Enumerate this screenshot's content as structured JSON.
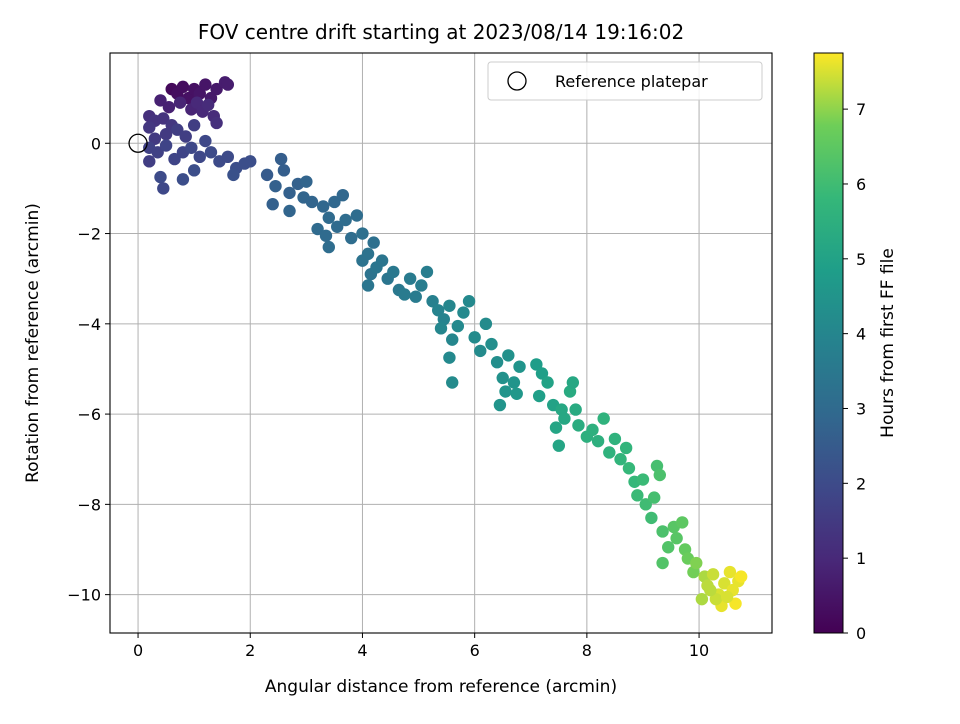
{
  "chart_data": {
    "type": "scatter",
    "title": "FOV centre drift starting at 2023/08/14 19:16:02",
    "xlabel": "Angular distance from reference (arcmin)",
    "ylabel": "Rotation from reference (arcmin)",
    "colorbar_label": "Hours from first FF file",
    "colormap": "viridis",
    "xlim": [
      -0.5,
      11.3
    ],
    "ylim": [
      -10.85,
      2.0
    ],
    "clim": [
      0,
      7.75
    ],
    "xticks": [
      0,
      2,
      4,
      6,
      8,
      10
    ],
    "yticks": [
      -10,
      -8,
      -6,
      -4,
      -2,
      0
    ],
    "cticks": [
      0,
      1,
      2,
      3,
      4,
      5,
      6,
      7
    ],
    "grid": true,
    "legend": {
      "position": "top-right",
      "entries": [
        "Reference platepar"
      ]
    },
    "reference_point": {
      "x": 0,
      "y": 0
    },
    "series": [
      {
        "name": "",
        "comment": "x, y in arcmin; c in hours from first FF file",
        "points": [
          {
            "x": 0.6,
            "y": 1.2,
            "c": 0.2
          },
          {
            "x": 0.7,
            "y": 1.1,
            "c": 0.3
          },
          {
            "x": 0.8,
            "y": 1.25,
            "c": 0.3
          },
          {
            "x": 0.9,
            "y": 1.0,
            "c": 0.4
          },
          {
            "x": 1.0,
            "y": 1.2,
            "c": 0.4
          },
          {
            "x": 1.1,
            "y": 1.1,
            "c": 0.5
          },
          {
            "x": 1.2,
            "y": 1.3,
            "c": 0.5
          },
          {
            "x": 1.3,
            "y": 1.0,
            "c": 0.6
          },
          {
            "x": 1.4,
            "y": 1.2,
            "c": 0.6
          },
          {
            "x": 1.55,
            "y": 1.35,
            "c": 0.7
          },
          {
            "x": 1.6,
            "y": 1.3,
            "c": 0.7
          },
          {
            "x": 0.4,
            "y": 0.95,
            "c": 0.8
          },
          {
            "x": 0.55,
            "y": 0.8,
            "c": 0.8
          },
          {
            "x": 0.75,
            "y": 0.9,
            "c": 0.9
          },
          {
            "x": 0.95,
            "y": 0.75,
            "c": 0.9
          },
          {
            "x": 1.05,
            "y": 0.9,
            "c": 1.0
          },
          {
            "x": 1.15,
            "y": 0.7,
            "c": 1.0
          },
          {
            "x": 1.25,
            "y": 0.85,
            "c": 1.1
          },
          {
            "x": 1.35,
            "y": 0.6,
            "c": 1.1
          },
          {
            "x": 1.4,
            "y": 0.45,
            "c": 1.2
          },
          {
            "x": 0.2,
            "y": 0.6,
            "c": 1.2
          },
          {
            "x": 0.3,
            "y": 0.5,
            "c": 1.3
          },
          {
            "x": 0.45,
            "y": 0.55,
            "c": 1.3
          },
          {
            "x": 0.6,
            "y": 0.4,
            "c": 1.4
          },
          {
            "x": 0.2,
            "y": 0.35,
            "c": 1.4
          },
          {
            "x": 0.3,
            "y": 0.1,
            "c": 1.5
          },
          {
            "x": 0.5,
            "y": 0.2,
            "c": 1.5
          },
          {
            "x": 0.7,
            "y": 0.3,
            "c": 1.6
          },
          {
            "x": 0.85,
            "y": 0.15,
            "c": 1.6
          },
          {
            "x": 1.0,
            "y": 0.4,
            "c": 1.6
          },
          {
            "x": 0.2,
            "y": -0.1,
            "c": 1.7
          },
          {
            "x": 0.35,
            "y": -0.2,
            "c": 1.7
          },
          {
            "x": 0.5,
            "y": -0.05,
            "c": 1.8
          },
          {
            "x": 0.65,
            "y": -0.35,
            "c": 1.8
          },
          {
            "x": 0.8,
            "y": -0.2,
            "c": 1.8
          },
          {
            "x": 0.95,
            "y": -0.1,
            "c": 1.9
          },
          {
            "x": 1.1,
            "y": -0.3,
            "c": 1.9
          },
          {
            "x": 1.2,
            "y": 0.05,
            "c": 1.9
          },
          {
            "x": 1.3,
            "y": -0.2,
            "c": 2.0
          },
          {
            "x": 1.45,
            "y": -0.4,
            "c": 2.0
          },
          {
            "x": 1.6,
            "y": -0.3,
            "c": 2.0
          },
          {
            "x": 1.75,
            "y": -0.55,
            "c": 2.1
          },
          {
            "x": 1.9,
            "y": -0.45,
            "c": 2.1
          },
          {
            "x": 2.0,
            "y": -0.4,
            "c": 2.1
          },
          {
            "x": 0.4,
            "y": -0.75,
            "c": 2.0
          },
          {
            "x": 0.45,
            "y": -1.0,
            "c": 1.9
          },
          {
            "x": 0.8,
            "y": -0.8,
            "c": 2.1
          },
          {
            "x": 1.0,
            "y": -0.6,
            "c": 2.1
          },
          {
            "x": 0.2,
            "y": -0.4,
            "c": 1.6
          },
          {
            "x": 1.7,
            "y": -0.7,
            "c": 2.2
          },
          {
            "x": 2.3,
            "y": -0.7,
            "c": 2.5
          },
          {
            "x": 2.55,
            "y": -0.35,
            "c": 2.6
          },
          {
            "x": 2.6,
            "y": -0.6,
            "c": 2.6
          },
          {
            "x": 2.45,
            "y": -0.95,
            "c": 2.7
          },
          {
            "x": 2.7,
            "y": -1.1,
            "c": 2.7
          },
          {
            "x": 2.85,
            "y": -0.9,
            "c": 2.7
          },
          {
            "x": 2.95,
            "y": -1.2,
            "c": 2.8
          },
          {
            "x": 3.0,
            "y": -0.85,
            "c": 2.8
          },
          {
            "x": 3.1,
            "y": -1.3,
            "c": 2.8
          },
          {
            "x": 2.4,
            "y": -1.35,
            "c": 2.7
          },
          {
            "x": 2.7,
            "y": -1.5,
            "c": 2.8
          },
          {
            "x": 3.3,
            "y": -1.4,
            "c": 2.9
          },
          {
            "x": 3.5,
            "y": -1.3,
            "c": 2.9
          },
          {
            "x": 3.65,
            "y": -1.15,
            "c": 2.9
          },
          {
            "x": 3.2,
            "y": -1.9,
            "c": 3.0
          },
          {
            "x": 3.35,
            "y": -2.05,
            "c": 3.0
          },
          {
            "x": 3.4,
            "y": -1.65,
            "c": 3.0
          },
          {
            "x": 3.55,
            "y": -1.85,
            "c": 3.0
          },
          {
            "x": 3.7,
            "y": -1.7,
            "c": 3.1
          },
          {
            "x": 3.8,
            "y": -2.1,
            "c": 3.1
          },
          {
            "x": 3.9,
            "y": -1.6,
            "c": 3.1
          },
          {
            "x": 4.0,
            "y": -2.0,
            "c": 3.2
          },
          {
            "x": 4.2,
            "y": -2.2,
            "c": 3.2
          },
          {
            "x": 3.4,
            "y": -2.3,
            "c": 3.1
          },
          {
            "x": 4.0,
            "y": -2.6,
            "c": 3.3
          },
          {
            "x": 4.1,
            "y": -2.45,
            "c": 3.3
          },
          {
            "x": 4.15,
            "y": -2.9,
            "c": 3.3
          },
          {
            "x": 4.25,
            "y": -2.75,
            "c": 3.4
          },
          {
            "x": 4.35,
            "y": -2.6,
            "c": 3.4
          },
          {
            "x": 4.45,
            "y": -3.0,
            "c": 3.4
          },
          {
            "x": 4.1,
            "y": -3.15,
            "c": 3.4
          },
          {
            "x": 4.55,
            "y": -2.85,
            "c": 3.5
          },
          {
            "x": 4.65,
            "y": -3.25,
            "c": 3.5
          },
          {
            "x": 4.75,
            "y": -3.35,
            "c": 3.6
          },
          {
            "x": 4.85,
            "y": -3.0,
            "c": 3.6
          },
          {
            "x": 4.95,
            "y": -3.4,
            "c": 3.6
          },
          {
            "x": 5.05,
            "y": -3.15,
            "c": 3.7
          },
          {
            "x": 5.15,
            "y": -2.85,
            "c": 3.7
          },
          {
            "x": 5.25,
            "y": -3.5,
            "c": 3.8
          },
          {
            "x": 5.35,
            "y": -3.7,
            "c": 3.9
          },
          {
            "x": 5.45,
            "y": -3.9,
            "c": 3.9
          },
          {
            "x": 5.55,
            "y": -3.6,
            "c": 4.0
          },
          {
            "x": 5.4,
            "y": -4.1,
            "c": 4.0
          },
          {
            "x": 5.6,
            "y": -4.35,
            "c": 4.0
          },
          {
            "x": 5.7,
            "y": -4.05,
            "c": 4.1
          },
          {
            "x": 5.8,
            "y": -3.75,
            "c": 4.1
          },
          {
            "x": 5.9,
            "y": -3.5,
            "c": 4.1
          },
          {
            "x": 6.0,
            "y": -4.3,
            "c": 4.2
          },
          {
            "x": 6.1,
            "y": -4.6,
            "c": 4.2
          },
          {
            "x": 6.2,
            "y": -4.0,
            "c": 4.2
          },
          {
            "x": 5.55,
            "y": -4.75,
            "c": 4.1
          },
          {
            "x": 5.6,
            "y": -5.3,
            "c": 4.2
          },
          {
            "x": 6.3,
            "y": -4.45,
            "c": 4.3
          },
          {
            "x": 6.4,
            "y": -4.85,
            "c": 4.3
          },
          {
            "x": 6.5,
            "y": -5.2,
            "c": 4.4
          },
          {
            "x": 6.6,
            "y": -4.7,
            "c": 4.4
          },
          {
            "x": 6.7,
            "y": -5.3,
            "c": 4.5
          },
          {
            "x": 6.8,
            "y": -4.95,
            "c": 4.5
          },
          {
            "x": 6.45,
            "y": -5.8,
            "c": 4.5
          },
          {
            "x": 6.55,
            "y": -5.5,
            "c": 4.5
          },
          {
            "x": 6.75,
            "y": -5.55,
            "c": 4.6
          },
          {
            "x": 7.1,
            "y": -4.9,
            "c": 4.8
          },
          {
            "x": 7.2,
            "y": -5.1,
            "c": 4.9
          },
          {
            "x": 7.15,
            "y": -5.6,
            "c": 4.9
          },
          {
            "x": 7.3,
            "y": -5.3,
            "c": 5.0
          },
          {
            "x": 7.4,
            "y": -5.8,
            "c": 5.0
          },
          {
            "x": 7.45,
            "y": -6.3,
            "c": 5.1
          },
          {
            "x": 7.5,
            "y": -6.7,
            "c": 5.1
          },
          {
            "x": 7.55,
            "y": -5.9,
            "c": 5.2
          },
          {
            "x": 7.6,
            "y": -6.1,
            "c": 5.2
          },
          {
            "x": 7.7,
            "y": -5.5,
            "c": 5.3
          },
          {
            "x": 7.8,
            "y": -5.9,
            "c": 5.3
          },
          {
            "x": 7.85,
            "y": -6.25,
            "c": 5.4
          },
          {
            "x": 7.75,
            "y": -5.3,
            "c": 5.2
          },
          {
            "x": 8.0,
            "y": -6.5,
            "c": 5.5
          },
          {
            "x": 8.1,
            "y": -6.35,
            "c": 5.5
          },
          {
            "x": 8.2,
            "y": -6.6,
            "c": 5.5
          },
          {
            "x": 8.3,
            "y": -6.1,
            "c": 5.6
          },
          {
            "x": 8.4,
            "y": -6.85,
            "c": 5.6
          },
          {
            "x": 8.5,
            "y": -6.55,
            "c": 5.6
          },
          {
            "x": 8.6,
            "y": -7.0,
            "c": 5.7
          },
          {
            "x": 8.7,
            "y": -6.75,
            "c": 5.7
          },
          {
            "x": 8.75,
            "y": -7.2,
            "c": 5.8
          },
          {
            "x": 8.85,
            "y": -7.5,
            "c": 5.8
          },
          {
            "x": 8.9,
            "y": -7.8,
            "c": 5.9
          },
          {
            "x": 9.0,
            "y": -7.45,
            "c": 5.9
          },
          {
            "x": 9.05,
            "y": -8.0,
            "c": 6.0
          },
          {
            "x": 9.15,
            "y": -8.3,
            "c": 6.0
          },
          {
            "x": 9.2,
            "y": -7.85,
            "c": 6.1
          },
          {
            "x": 9.25,
            "y": -7.15,
            "c": 6.1
          },
          {
            "x": 9.3,
            "y": -7.35,
            "c": 6.2
          },
          {
            "x": 9.35,
            "y": -8.6,
            "c": 6.2
          },
          {
            "x": 9.35,
            "y": -9.3,
            "c": 6.3
          },
          {
            "x": 9.45,
            "y": -8.95,
            "c": 6.3
          },
          {
            "x": 9.55,
            "y": -8.5,
            "c": 6.4
          },
          {
            "x": 9.6,
            "y": -8.75,
            "c": 6.4
          },
          {
            "x": 9.7,
            "y": -8.4,
            "c": 6.5
          },
          {
            "x": 9.75,
            "y": -9.0,
            "c": 6.6
          },
          {
            "x": 9.8,
            "y": -9.2,
            "c": 6.7
          },
          {
            "x": 9.9,
            "y": -9.5,
            "c": 6.8
          },
          {
            "x": 9.95,
            "y": -9.3,
            "c": 6.9
          },
          {
            "x": 10.1,
            "y": -9.6,
            "c": 7.2
          },
          {
            "x": 10.15,
            "y": -9.8,
            "c": 7.3
          },
          {
            "x": 10.25,
            "y": -9.55,
            "c": 7.4
          },
          {
            "x": 10.35,
            "y": -10.0,
            "c": 7.5
          },
          {
            "x": 10.45,
            "y": -9.75,
            "c": 7.5
          },
          {
            "x": 10.55,
            "y": -9.5,
            "c": 7.6
          },
          {
            "x": 10.6,
            "y": -9.9,
            "c": 7.6
          },
          {
            "x": 10.7,
            "y": -9.7,
            "c": 7.6
          },
          {
            "x": 10.75,
            "y": -9.6,
            "c": 7.7
          },
          {
            "x": 10.65,
            "y": -10.2,
            "c": 7.7
          },
          {
            "x": 10.4,
            "y": -10.25,
            "c": 7.6
          },
          {
            "x": 10.05,
            "y": -10.1,
            "c": 7.2
          },
          {
            "x": 10.3,
            "y": -10.1,
            "c": 7.4
          },
          {
            "x": 10.5,
            "y": -10.05,
            "c": 7.5
          },
          {
            "x": 10.2,
            "y": -9.9,
            "c": 7.3
          }
        ]
      }
    ]
  }
}
